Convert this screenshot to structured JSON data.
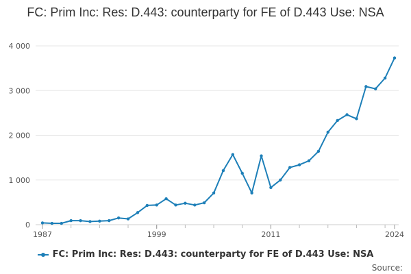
{
  "chart_data": {
    "type": "line",
    "title": "FC: Prim Inc: Res: D.443: counterparty for FE of D.443 Use: NSA",
    "xlabel": "",
    "ylabel": "",
    "xlim": [
      1987,
      2024
    ],
    "ylim": [
      0,
      4000
    ],
    "yticks": [
      0,
      1000,
      2000,
      3000,
      4000
    ],
    "ytick_labels": [
      "0",
      "1 000",
      "2 000",
      "3 000",
      "4 000"
    ],
    "xticks": [
      1987,
      1999,
      2011,
      2024
    ],
    "xtick_labels": [
      "1987",
      "1999",
      "2011",
      "2024"
    ],
    "grid": true,
    "legend_position": "bottom",
    "series": [
      {
        "name": "FC: Prim Inc: Res: D.443: counterparty for FE of D.443 Use: NSA",
        "color": "#1d7fb8",
        "x": [
          1987,
          1988,
          1989,
          1990,
          1991,
          1992,
          1993,
          1994,
          1995,
          1996,
          1997,
          1998,
          1999,
          2000,
          2001,
          2002,
          2003,
          2004,
          2005,
          2006,
          2007,
          2008,
          2009,
          2010,
          2011,
          2012,
          2013,
          2014,
          2015,
          2016,
          2017,
          2018,
          2019,
          2020,
          2021,
          2022,
          2023,
          2024
        ],
        "values": [
          40,
          30,
          30,
          90,
          90,
          70,
          80,
          90,
          150,
          130,
          270,
          430,
          440,
          580,
          440,
          480,
          440,
          490,
          710,
          1210,
          1570,
          1150,
          710,
          1540,
          830,
          1000,
          1280,
          1340,
          1430,
          1640,
          2070,
          2330,
          2460,
          2370,
          3090,
          3040,
          3280,
          3730
        ]
      }
    ]
  },
  "legend": {
    "label": "FC: Prim Inc: Res: D.443: counterparty for FE of D.443 Use: NSA"
  },
  "footer": {
    "source_label": "Source:"
  }
}
